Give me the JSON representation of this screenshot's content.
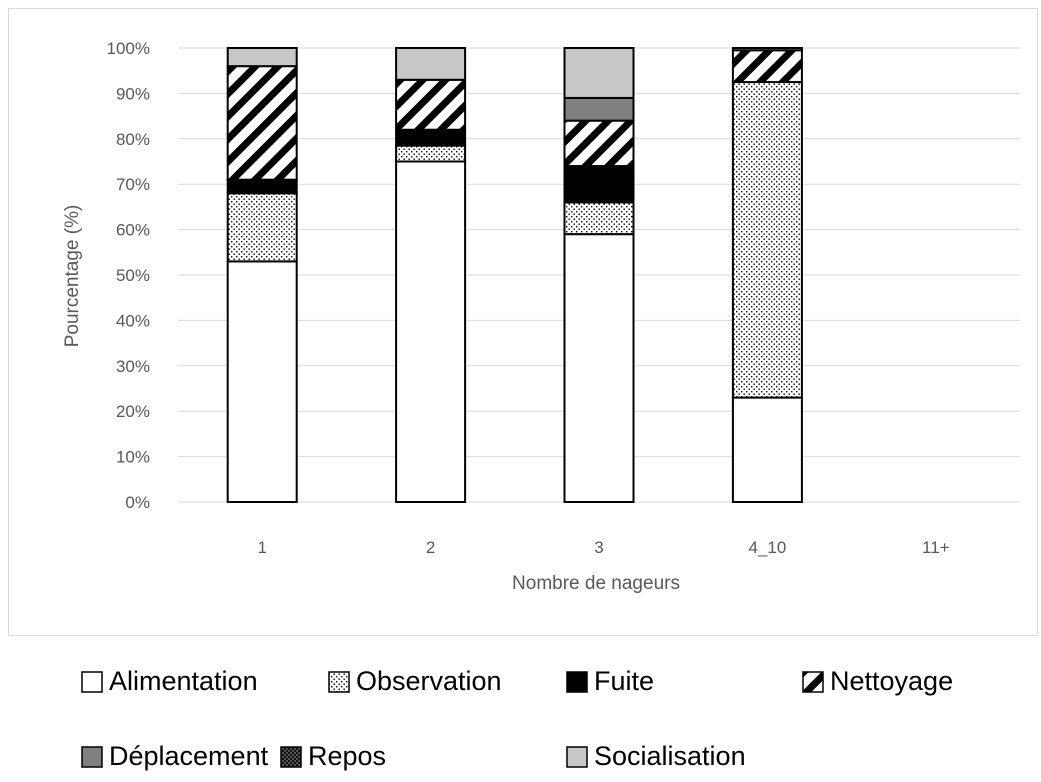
{
  "chart_data": {
    "type": "bar",
    "stacked": true,
    "normalized": true,
    "xlabel": "Nombre  de nageurs",
    "ylabel": "Pourcentage  (%)",
    "categories": [
      "1",
      "2",
      "3",
      "4_10",
      "11+"
    ],
    "y_ticks": [
      "0%",
      "10%",
      "20%",
      "30%",
      "40%",
      "50%",
      "60%",
      "70%",
      "80%",
      "90%",
      "100%"
    ],
    "ylim": [
      0,
      100
    ],
    "grid": "horizontal",
    "legend_position": "bottom",
    "series": [
      {
        "name": "Alimentation",
        "pattern": "white",
        "values": [
          53,
          75,
          59,
          23,
          0
        ]
      },
      {
        "name": "Observation",
        "pattern": "dots",
        "values": [
          15,
          3.5,
          7,
          69.5,
          0
        ]
      },
      {
        "name": "Fuite",
        "pattern": "black",
        "values": [
          3,
          3.5,
          8,
          0,
          0
        ]
      },
      {
        "name": "Nettoyage",
        "pattern": "diagonal-stripes",
        "values": [
          25,
          11,
          10,
          7,
          0
        ]
      },
      {
        "name": "Déplacement",
        "pattern": "dark-gray",
        "values": [
          0,
          0,
          5,
          0,
          0
        ]
      },
      {
        "name": "Repos",
        "pattern": "grid",
        "values": [
          0,
          0,
          0,
          0,
          0
        ]
      },
      {
        "name": "Socialisation",
        "pattern": "light-gray",
        "values": [
          4,
          7,
          11,
          0.5,
          0
        ]
      }
    ]
  }
}
